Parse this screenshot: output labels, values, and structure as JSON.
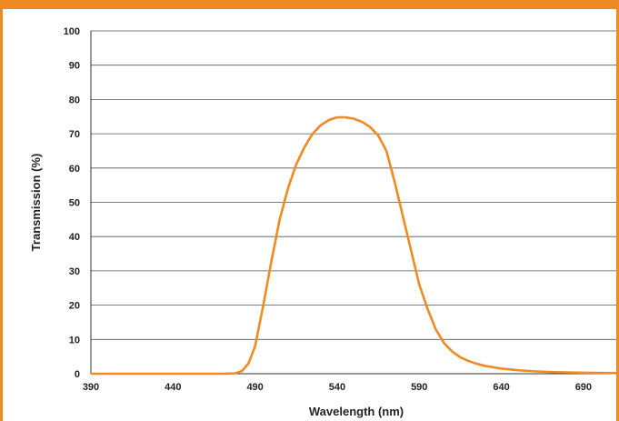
{
  "chart_data": {
    "type": "line",
    "title": "",
    "xlabel": "Wavelength (nm)",
    "ylabel": "Transmission (%)",
    "xlim": [
      390,
      710
    ],
    "ylim": [
      0,
      100
    ],
    "xticks": [
      390,
      440,
      490,
      540,
      590,
      640,
      690
    ],
    "yticks": [
      0,
      10,
      20,
      30,
      40,
      50,
      60,
      70,
      80,
      90,
      100
    ],
    "grid": "horizontal",
    "legend": "none",
    "colors": {
      "line": "#F08A24",
      "frame": "#F08A24",
      "grid": "#555555"
    },
    "series": [
      {
        "x": [
          390,
          420,
          450,
          470,
          478,
          482,
          486,
          490,
          495,
          500,
          505,
          510,
          515,
          520,
          525,
          530,
          535,
          540,
          545,
          550,
          555,
          560,
          565,
          570,
          575,
          580,
          585,
          590,
          595,
          600,
          605,
          610,
          615,
          620,
          625,
          630,
          640,
          650,
          660,
          670,
          690,
          710
        ],
        "y": [
          0,
          0,
          0,
          0,
          0.1,
          0.8,
          3,
          8,
          20,
          33,
          45,
          54,
          61,
          66,
          70,
          72.5,
          74,
          74.8,
          74.8,
          74.4,
          73.5,
          72,
          69.5,
          65,
          56,
          46,
          36,
          26,
          19,
          13,
          9,
          6.5,
          4.8,
          3.7,
          2.9,
          2.3,
          1.5,
          1.0,
          0.7,
          0.5,
          0.3,
          0.2
        ]
      }
    ]
  }
}
